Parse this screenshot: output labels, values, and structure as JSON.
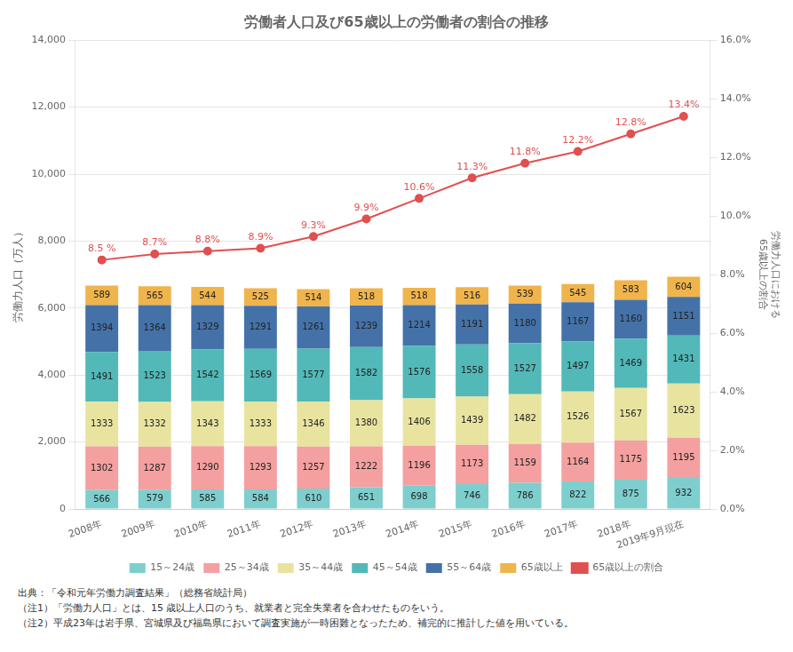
{
  "chart_data": {
    "type": "bar",
    "stacked": true,
    "title": "労働者人口及び65歳以上の労働者の割合の推移",
    "ylabel": "労働力人口（万人）",
    "y2label": [
      "労働力人口における",
      "65歳以上の割合"
    ],
    "annotations": [
      "出典：「令和元年労働力調査結果」（総務省統計局）",
      "（注1）「労働力人口」とは、15 歳以上人口のうち、就業者と完全失業者を合わせたものをいう。",
      "（注2）平成23年は岩手県、宮城県及び福島県において調査実施が一時困難となったため、補完的に推計した値を用いている。"
    ],
    "categories": [
      "2008年",
      "2009年",
      "2010年",
      "2011年",
      "2012年",
      "2013年",
      "2014年",
      "2015年",
      "2016年",
      "2017年",
      "2018年",
      "2019年9月現在"
    ],
    "series": [
      {
        "name": "15～24歳",
        "color": "#7ecece",
        "values": [
          566,
          579,
          585,
          584,
          610,
          651,
          698,
          746,
          786,
          822,
          875,
          932
        ]
      },
      {
        "name": "25～34歳",
        "color": "#f4a0a0",
        "values": [
          1302,
          1287,
          1290,
          1293,
          1257,
          1222,
          1196,
          1173,
          1159,
          1164,
          1175,
          1195
        ]
      },
      {
        "name": "35～44歳",
        "color": "#e8e4a0",
        "values": [
          1333,
          1332,
          1343,
          1333,
          1346,
          1380,
          1406,
          1439,
          1482,
          1526,
          1567,
          1623
        ]
      },
      {
        "name": "45～54歳",
        "color": "#52b8b8",
        "values": [
          1491,
          1523,
          1542,
          1569,
          1577,
          1582,
          1576,
          1558,
          1527,
          1497,
          1469,
          1431
        ]
      },
      {
        "name": "55～64歳",
        "color": "#4472a8",
        "values": [
          1394,
          1364,
          1329,
          1291,
          1261,
          1239,
          1214,
          1191,
          1180,
          1167,
          1160,
          1151
        ]
      },
      {
        "name": "65歳以上",
        "color": "#f0b44c",
        "values": [
          589,
          565,
          544,
          525,
          514,
          518,
          518,
          516,
          539,
          545,
          583,
          604
        ]
      },
      {
        "name": "65歳以上の割合",
        "type": "line",
        "axis": "y2",
        "color": "#e05050",
        "marker": "circle",
        "line_style": "solid",
        "values": [
          8.5,
          8.7,
          8.8,
          8.9,
          9.3,
          9.9,
          10.6,
          11.3,
          11.8,
          12.2,
          12.8,
          13.4
        ],
        "value_labels": [
          "8.5 %",
          "8.7%",
          "8.8%",
          "8.9%",
          "9.3%",
          "9.9%",
          "10.6%",
          "11.3%",
          "11.8%",
          "12.2%",
          "12.8%",
          "13.4%"
        ]
      }
    ],
    "data_labels": true,
    "ylim": [
      0,
      14000
    ],
    "yticks": [
      0,
      {
        "value": 2000,
        "label": "2,000"
      },
      {
        "value": 4000,
        "label": "4,000"
      },
      {
        "value": 6000,
        "label": "6,000"
      },
      {
        "value": 8000,
        "label": "8,000"
      },
      {
        "value": 10000,
        "label": "10,000"
      },
      {
        "value": 12000,
        "label": "12,000"
      },
      {
        "value": 14000,
        "label": "14,000"
      }
    ],
    "y2lim": [
      0.0,
      16.0
    ],
    "y2ticks": [
      {
        "value": 0,
        "label": "0.0%"
      },
      {
        "value": 2,
        "label": "2.0%"
      },
      {
        "value": 4,
        "label": "4.0%"
      },
      {
        "value": 6,
        "label": "6.0%"
      },
      {
        "value": 8,
        "label": "8.0%"
      },
      {
        "value": 10,
        "label": "10.0%"
      },
      {
        "value": 12,
        "label": "12.0%"
      },
      {
        "value": 14,
        "label": "14.0%"
      },
      {
        "value": 16,
        "label": "16.0%"
      }
    ],
    "grid": true,
    "legend": "bottom"
  }
}
